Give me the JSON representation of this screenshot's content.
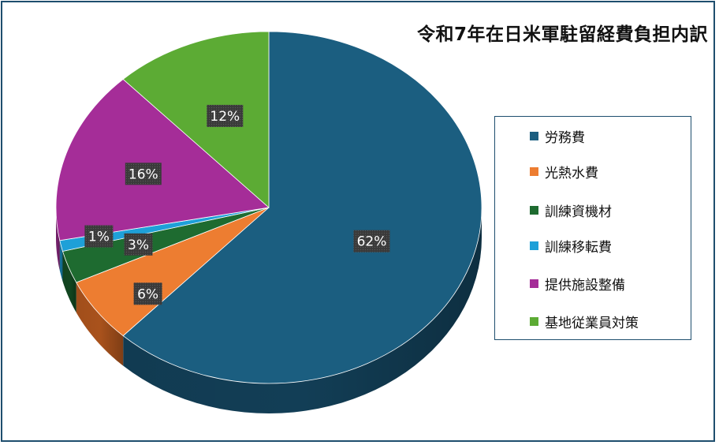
{
  "chart_data": {
    "type": "pie",
    "title": "令和7年在日米軍駐留経費負担内訳",
    "legend_position": "right",
    "slices": [
      {
        "label": "労務費",
        "value": 62,
        "display": "62%",
        "color": "#1b5e80",
        "side": "#123e56"
      },
      {
        "label": "光熱水費",
        "value": 6,
        "display": "6%",
        "color": "#ed7d31",
        "side": "#a9521c"
      },
      {
        "label": "訓練資機材",
        "value": 3,
        "display": "3%",
        "color": "#1e6b30",
        "side": "#124620"
      },
      {
        "label": "訓練移転費",
        "value": 1,
        "display": "1%",
        "color": "#1ea0d8",
        "side": "#14729a"
      },
      {
        "label": "提供施設整備",
        "value": 16,
        "display": "16%",
        "color": "#a52d98",
        "side": "#74206b"
      },
      {
        "label": "基地従業員対策",
        "value": 12,
        "display": "12%",
        "color": "#5cab34",
        "side": "#3f7a22"
      }
    ]
  }
}
